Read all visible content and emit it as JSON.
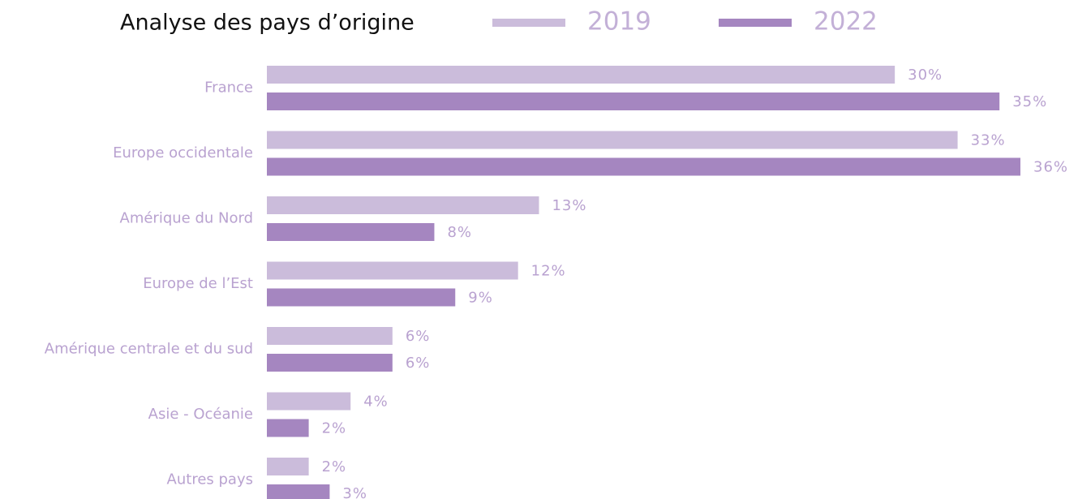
{
  "chart_data": {
    "type": "bar",
    "orientation": "horizontal",
    "title": "Analyse des pays d’origine",
    "categories": [
      "France",
      "Europe occidentale",
      "Amérique du Nord",
      "Europe de l’Est",
      "Amérique centrale et du sud",
      "Asie - Océanie",
      "Autres pays"
    ],
    "series": [
      {
        "name": "2019",
        "color": "#cbbcdb",
        "values": [
          30,
          33,
          13,
          12,
          6,
          4,
          2
        ],
        "value_labels": [
          "30%",
          "33%",
          "13%",
          "12%",
          "6%",
          "4%",
          "2%"
        ]
      },
      {
        "name": "2022",
        "color": "#a586c0",
        "values": [
          35,
          36,
          8,
          9,
          6,
          2,
          3
        ],
        "value_labels": [
          "35%",
          "36%",
          "8%",
          "9%",
          "6%",
          "2%",
          "3%"
        ]
      }
    ]
  }
}
